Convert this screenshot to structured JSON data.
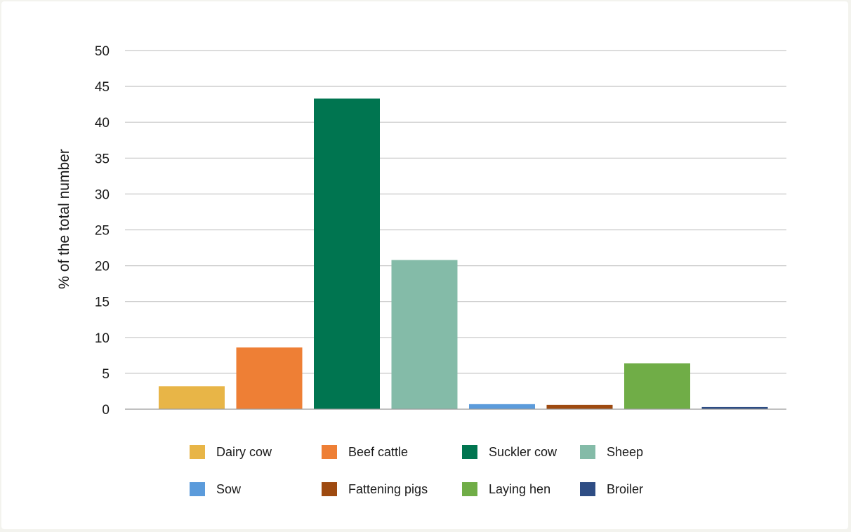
{
  "chart_data": {
    "type": "bar",
    "title": "",
    "xlabel": "",
    "ylabel": "% of the total number",
    "ylim": [
      0,
      50
    ],
    "yticks": [
      0,
      5,
      10,
      15,
      20,
      25,
      30,
      35,
      40,
      45,
      50
    ],
    "grid": true,
    "legend_position": "bottom",
    "categories": [
      "Dairy cow",
      "Beef cattle",
      "Suckler cow",
      "Sheep",
      "Sow",
      "Fattening pigs",
      "Laying hen",
      "Broiler"
    ],
    "values": [
      3.2,
      8.6,
      43.3,
      20.8,
      0.7,
      0.6,
      6.4,
      0.3
    ],
    "colors": [
      "#e8b547",
      "#ee7f35",
      "#007550",
      "#84bba8",
      "#5b9bdb",
      "#9e4a10",
      "#70ad47",
      "#2e4d84"
    ]
  }
}
